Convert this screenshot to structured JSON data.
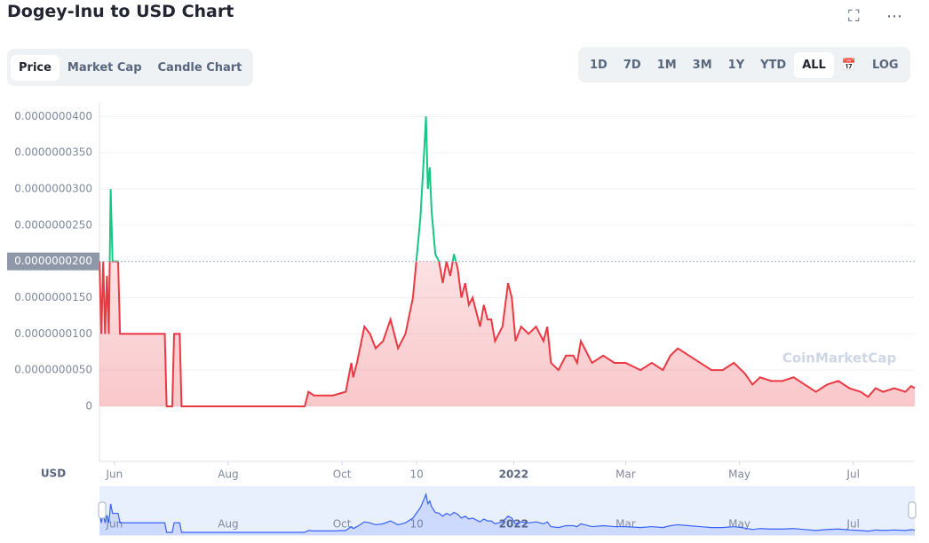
{
  "ui": {
    "tabs": [
      "Price",
      "Market Cap",
      "Candle Chart"
    ],
    "ranges": [
      "1D",
      "7D",
      "1M",
      "3M",
      "1Y",
      "YTD",
      "ALL"
    ],
    "log": "LOG",
    "currency": "USD",
    "watermark": "CoinMarketCap"
  },
  "chart_data": {
    "type": "line",
    "title": "Dogey-Inu to USD Chart",
    "x": [
      0,
      1,
      2,
      3,
      4,
      5,
      5.5,
      6,
      7,
      10,
      11,
      35,
      36,
      39,
      40,
      43,
      44,
      110,
      112,
      115,
      125,
      132,
      135,
      136,
      138,
      142,
      145,
      148,
      152,
      156,
      160,
      164,
      168,
      172,
      174,
      175,
      176,
      177,
      178,
      180,
      182,
      184,
      186,
      188,
      190,
      192,
      194,
      196,
      198,
      200,
      202,
      204,
      206,
      208,
      210,
      212,
      216,
      219,
      221,
      223,
      226,
      230,
      234,
      238,
      240,
      242,
      246,
      250,
      254,
      256,
      258,
      260,
      264,
      270,
      276,
      282,
      290,
      296,
      302,
      306,
      310,
      316,
      322,
      328,
      334,
      340,
      346,
      350,
      354,
      360,
      366,
      372,
      378,
      384,
      390,
      396,
      402,
      408,
      412,
      416,
      420,
      426,
      432,
      435,
      437
    ],
    "series": [
      {
        "name": "Price",
        "color": "#ea3943",
        "up_color": "#16c784",
        "values": [
          2e-08,
          1e-08,
          2e-08,
          1e-08,
          1.8e-08,
          1e-08,
          2e-08,
          3e-08,
          2e-08,
          2e-08,
          1e-08,
          1e-08,
          0,
          0,
          1e-08,
          1e-08,
          0,
          0,
          2e-09,
          1.5e-09,
          1.5e-09,
          2e-09,
          6e-09,
          4e-09,
          6e-09,
          1.1e-08,
          1e-08,
          8e-09,
          9e-09,
          1.2e-08,
          8e-09,
          1e-08,
          1.5e-08,
          2.6e-08,
          3.5e-08,
          4e-08,
          3e-08,
          3.3e-08,
          2.7e-08,
          2.1e-08,
          2e-08,
          1.7e-08,
          2e-08,
          1.8e-08,
          2.1e-08,
          1.9e-08,
          1.5e-08,
          1.7e-08,
          1.4e-08,
          1.5e-08,
          1.3e-08,
          1.1e-08,
          1.4e-08,
          1.2e-08,
          1.2e-08,
          9e-09,
          1.1e-08,
          1.7e-08,
          1.5e-08,
          9e-09,
          1.1e-08,
          1e-08,
          1.1e-08,
          9e-09,
          1.1e-08,
          6e-09,
          5e-09,
          7e-09,
          7e-09,
          6e-09,
          9e-09,
          8e-09,
          6e-09,
          7e-09,
          6e-09,
          6e-09,
          5e-09,
          6e-09,
          5e-09,
          7e-09,
          8e-09,
          7e-09,
          6e-09,
          5e-09,
          5e-09,
          6e-09,
          4.5e-09,
          3e-09,
          4e-09,
          3.5e-09,
          3.5e-09,
          4e-09,
          3e-09,
          2e-09,
          3e-09,
          3.5e-09,
          2.5e-09,
          2e-09,
          1.3e-09,
          2.5e-09,
          2e-09,
          2.5e-09,
          2e-09,
          2.8e-09,
          2.5e-09
        ]
      }
    ],
    "xlim": [
      0,
      437
    ],
    "xticks": [
      {
        "value": 8,
        "label": "Jun"
      },
      {
        "value": 69,
        "label": "Aug"
      },
      {
        "value": 130,
        "label": "Oct"
      },
      {
        "value": 170,
        "label": "10"
      },
      {
        "value": 222,
        "label": "2022"
      },
      {
        "value": 282,
        "label": "Mar"
      },
      {
        "value": 343,
        "label": "May"
      },
      {
        "value": 404,
        "label": "Jul"
      }
    ],
    "ylim": [
      -7.6e-09,
      4.2e-08
    ],
    "yticks": [
      0,
      {
        "value": 5e-09,
        "label": "0.0000000050"
      },
      {
        "value": 1e-08,
        "label": "0.0000000100"
      },
      {
        "value": 1.5e-08,
        "label": "0.0000000150"
      },
      {
        "value": 2.5e-08,
        "label": "0.0000000250"
      },
      {
        "value": 3e-08,
        "label": "0.0000000300"
      },
      {
        "value": 3.5e-08,
        "label": "0.0000000350"
      },
      {
        "value": 4e-08,
        "label": "0.0000000400"
      }
    ],
    "current_price": {
      "value": 2e-08,
      "label": "0.0000000200"
    },
    "grid": true
  }
}
